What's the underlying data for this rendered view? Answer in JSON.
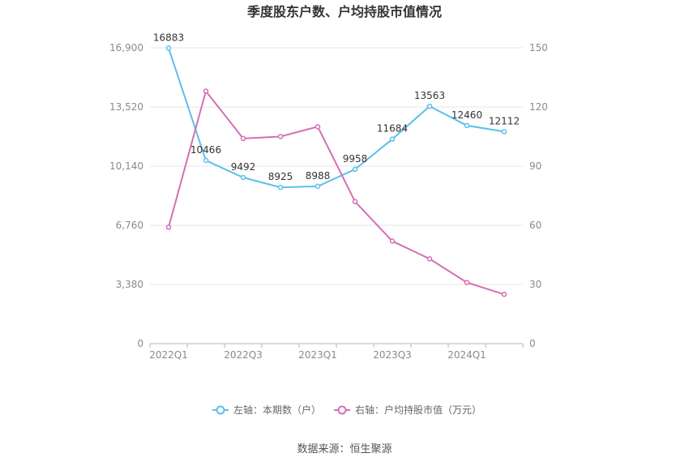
{
  "chart_data": {
    "type": "line",
    "title": "季度股东户数、户均持股市值情况",
    "x": [
      "2022Q1",
      "2022Q2",
      "2022Q3",
      "2022Q4",
      "2023Q1",
      "2023Q2",
      "2023Q3",
      "2023Q4",
      "2024Q1",
      "2024Q2"
    ],
    "x_tick_labels": [
      "2022Q1",
      "2022Q3",
      "2023Q1",
      "2023Q3",
      "2024Q1"
    ],
    "y_left": {
      "ticks": [
        "0",
        "3,380",
        "6,760",
        "10,140",
        "13,520",
        "16,900"
      ],
      "ylim": [
        0,
        16900
      ]
    },
    "y_right": {
      "ticks": [
        "0",
        "30",
        "60",
        "90",
        "120",
        "150"
      ],
      "ylim": [
        0,
        150
      ]
    },
    "grid": true,
    "legend_position": "bottom",
    "series": [
      {
        "name": "左轴：本期数（户）",
        "axis": "left",
        "color": "#5bc0eb",
        "values": [
          16883,
          10466,
          9492,
          8925,
          8988,
          9958,
          11684,
          13563,
          12460,
          12112
        ],
        "data_labels": [
          "16883",
          "10466",
          "9492",
          "8925",
          "8988",
          "9958",
          "11684",
          "13563",
          "12460",
          "12112"
        ]
      },
      {
        "name": "右轴：户均持股市值（万元）",
        "axis": "right",
        "color": "#d46fb5",
        "values": [
          59,
          128,
          104,
          105,
          110,
          72,
          52,
          43,
          31,
          25
        ]
      }
    ]
  },
  "source": "数据来源：恒生聚源"
}
